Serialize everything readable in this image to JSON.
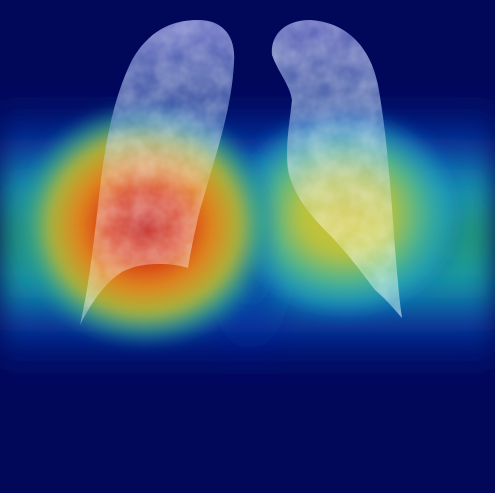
{
  "image": {
    "subject": "lung-xray-heatmap-overlay",
    "colormap": "jet",
    "colors": {
      "background_low": "#01085a",
      "blue": "#0b2fbf",
      "cyan": "#16c8c9",
      "green": "#2fae6a",
      "yellow": "#c8c83a",
      "orange": "#e07a1f",
      "red": "#c81010",
      "lung_tint": "#ffffff"
    },
    "regions": [
      {
        "name": "left-lung",
        "activation": "high"
      },
      {
        "name": "right-lung",
        "activation": "medium"
      }
    ]
  }
}
